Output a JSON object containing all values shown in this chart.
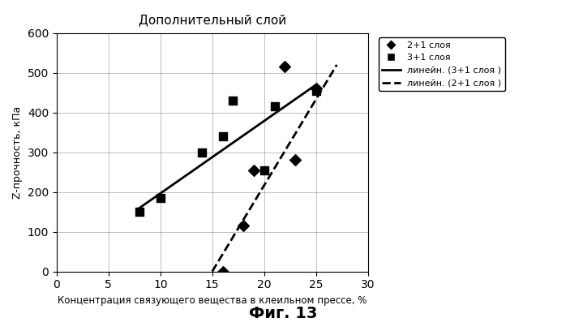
{
  "title": "Дополнительный слой",
  "xlabel": "Концентрация связующего вещества в клеильном прессе, %",
  "ylabel": "Z-прочность, кПа",
  "figcaption": "Фиг. 13",
  "xlim": [
    0,
    30
  ],
  "ylim": [
    0,
    600
  ],
  "xticks": [
    0,
    5,
    10,
    15,
    20,
    25,
    30
  ],
  "yticks": [
    0,
    100,
    200,
    300,
    400,
    500,
    600
  ],
  "series_2plus1": {
    "x": [
      16,
      18,
      19,
      22,
      23,
      25
    ],
    "y": [
      0,
      115,
      255,
      515,
      280,
      460
    ],
    "label": "2+1 слоя",
    "marker": "D",
    "color": "black",
    "markersize": 7
  },
  "series_3plus1": {
    "x": [
      8,
      10,
      14,
      16,
      17,
      20,
      21,
      25
    ],
    "y": [
      150,
      185,
      300,
      340,
      430,
      255,
      415,
      455
    ],
    "label": "3+1 слоя",
    "marker": "s",
    "color": "black",
    "markersize": 7
  },
  "trend_3plus1": {
    "x": [
      8,
      25
    ],
    "y": [
      160,
      470
    ],
    "label": "линейн. (3+1 слоя )",
    "linestyle": "-",
    "color": "black",
    "linewidth": 2
  },
  "trend_2plus1": {
    "x": [
      15,
      27
    ],
    "y": [
      0,
      520
    ],
    "label": "линейн. (2+1 слоя )",
    "linestyle": "--",
    "color": "black",
    "linewidth": 2
  },
  "background_color": "#ffffff",
  "grid": true
}
